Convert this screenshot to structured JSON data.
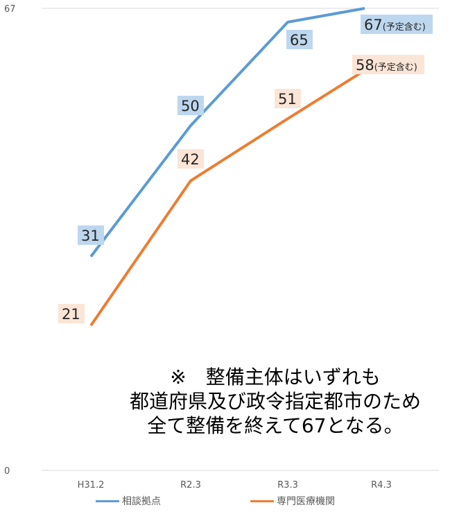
{
  "chart_data": {
    "type": "line",
    "categories": [
      "H31.2",
      "R2.3",
      "R3.3",
      "R4.3"
    ],
    "ylim": [
      0,
      67
    ],
    "yticks": [
      "0",
      "67"
    ],
    "series": [
      {
        "name": "相談拠点",
        "color": "#5b9bd5",
        "label_bg": "#bdd7ee",
        "values": [
          31,
          50,
          65,
          67
        ],
        "labels": [
          "31",
          "50",
          "65",
          "67"
        ],
        "label_suffix": [
          "",
          "",
          "",
          "(予定含む)"
        ]
      },
      {
        "name": "専門医療機関",
        "color": "#ed7d31",
        "label_bg": "#fbe5d6",
        "values": [
          21,
          42,
          51,
          58
        ],
        "labels": [
          "21",
          "42",
          "51",
          "58"
        ],
        "label_suffix": [
          "",
          "",
          "",
          "(予定含む)"
        ]
      }
    ],
    "annotation": {
      "line1": "※　整備主体はいずれも",
      "line2": "都道府県及び政令指定都市のため",
      "line3": "全て整備を終えて67となる。"
    }
  }
}
